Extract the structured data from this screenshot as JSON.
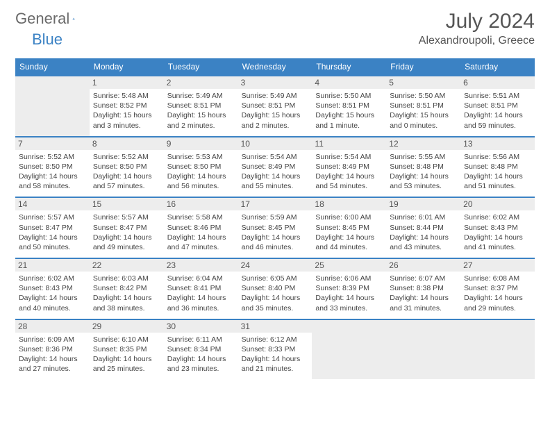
{
  "brand": {
    "w1": "General",
    "w2": "Blue",
    "logo_color": "#3b82c4"
  },
  "header": {
    "month": "July 2024",
    "location": "Alexandroupoli, Greece"
  },
  "colors": {
    "accent": "#3b82c4",
    "daybar": "#ededed",
    "text": "#444"
  },
  "dows": [
    "Sunday",
    "Monday",
    "Tuesday",
    "Wednesday",
    "Thursday",
    "Friday",
    "Saturday"
  ],
  "weeks": [
    [
      null,
      {
        "n": "1",
        "sr": "5:48 AM",
        "ss": "8:52 PM",
        "dl": "15 hours and 3 minutes."
      },
      {
        "n": "2",
        "sr": "5:49 AM",
        "ss": "8:51 PM",
        "dl": "15 hours and 2 minutes."
      },
      {
        "n": "3",
        "sr": "5:49 AM",
        "ss": "8:51 PM",
        "dl": "15 hours and 2 minutes."
      },
      {
        "n": "4",
        "sr": "5:50 AM",
        "ss": "8:51 PM",
        "dl": "15 hours and 1 minute."
      },
      {
        "n": "5",
        "sr": "5:50 AM",
        "ss": "8:51 PM",
        "dl": "15 hours and 0 minutes."
      },
      {
        "n": "6",
        "sr": "5:51 AM",
        "ss": "8:51 PM",
        "dl": "14 hours and 59 minutes."
      }
    ],
    [
      {
        "n": "7",
        "sr": "5:52 AM",
        "ss": "8:50 PM",
        "dl": "14 hours and 58 minutes."
      },
      {
        "n": "8",
        "sr": "5:52 AM",
        "ss": "8:50 PM",
        "dl": "14 hours and 57 minutes."
      },
      {
        "n": "9",
        "sr": "5:53 AM",
        "ss": "8:50 PM",
        "dl": "14 hours and 56 minutes."
      },
      {
        "n": "10",
        "sr": "5:54 AM",
        "ss": "8:49 PM",
        "dl": "14 hours and 55 minutes."
      },
      {
        "n": "11",
        "sr": "5:54 AM",
        "ss": "8:49 PM",
        "dl": "14 hours and 54 minutes."
      },
      {
        "n": "12",
        "sr": "5:55 AM",
        "ss": "8:48 PM",
        "dl": "14 hours and 53 minutes."
      },
      {
        "n": "13",
        "sr": "5:56 AM",
        "ss": "8:48 PM",
        "dl": "14 hours and 51 minutes."
      }
    ],
    [
      {
        "n": "14",
        "sr": "5:57 AM",
        "ss": "8:47 PM",
        "dl": "14 hours and 50 minutes."
      },
      {
        "n": "15",
        "sr": "5:57 AM",
        "ss": "8:47 PM",
        "dl": "14 hours and 49 minutes."
      },
      {
        "n": "16",
        "sr": "5:58 AM",
        "ss": "8:46 PM",
        "dl": "14 hours and 47 minutes."
      },
      {
        "n": "17",
        "sr": "5:59 AM",
        "ss": "8:45 PM",
        "dl": "14 hours and 46 minutes."
      },
      {
        "n": "18",
        "sr": "6:00 AM",
        "ss": "8:45 PM",
        "dl": "14 hours and 44 minutes."
      },
      {
        "n": "19",
        "sr": "6:01 AM",
        "ss": "8:44 PM",
        "dl": "14 hours and 43 minutes."
      },
      {
        "n": "20",
        "sr": "6:02 AM",
        "ss": "8:43 PM",
        "dl": "14 hours and 41 minutes."
      }
    ],
    [
      {
        "n": "21",
        "sr": "6:02 AM",
        "ss": "8:43 PM",
        "dl": "14 hours and 40 minutes."
      },
      {
        "n": "22",
        "sr": "6:03 AM",
        "ss": "8:42 PM",
        "dl": "14 hours and 38 minutes."
      },
      {
        "n": "23",
        "sr": "6:04 AM",
        "ss": "8:41 PM",
        "dl": "14 hours and 36 minutes."
      },
      {
        "n": "24",
        "sr": "6:05 AM",
        "ss": "8:40 PM",
        "dl": "14 hours and 35 minutes."
      },
      {
        "n": "25",
        "sr": "6:06 AM",
        "ss": "8:39 PM",
        "dl": "14 hours and 33 minutes."
      },
      {
        "n": "26",
        "sr": "6:07 AM",
        "ss": "8:38 PM",
        "dl": "14 hours and 31 minutes."
      },
      {
        "n": "27",
        "sr": "6:08 AM",
        "ss": "8:37 PM",
        "dl": "14 hours and 29 minutes."
      }
    ],
    [
      {
        "n": "28",
        "sr": "6:09 AM",
        "ss": "8:36 PM",
        "dl": "14 hours and 27 minutes."
      },
      {
        "n": "29",
        "sr": "6:10 AM",
        "ss": "8:35 PM",
        "dl": "14 hours and 25 minutes."
      },
      {
        "n": "30",
        "sr": "6:11 AM",
        "ss": "8:34 PM",
        "dl": "14 hours and 23 minutes."
      },
      {
        "n": "31",
        "sr": "6:12 AM",
        "ss": "8:33 PM",
        "dl": "14 hours and 21 minutes."
      },
      null,
      null,
      null
    ]
  ],
  "labels": {
    "sunrise": "Sunrise:",
    "sunset": "Sunset:",
    "daylight": "Daylight:"
  }
}
